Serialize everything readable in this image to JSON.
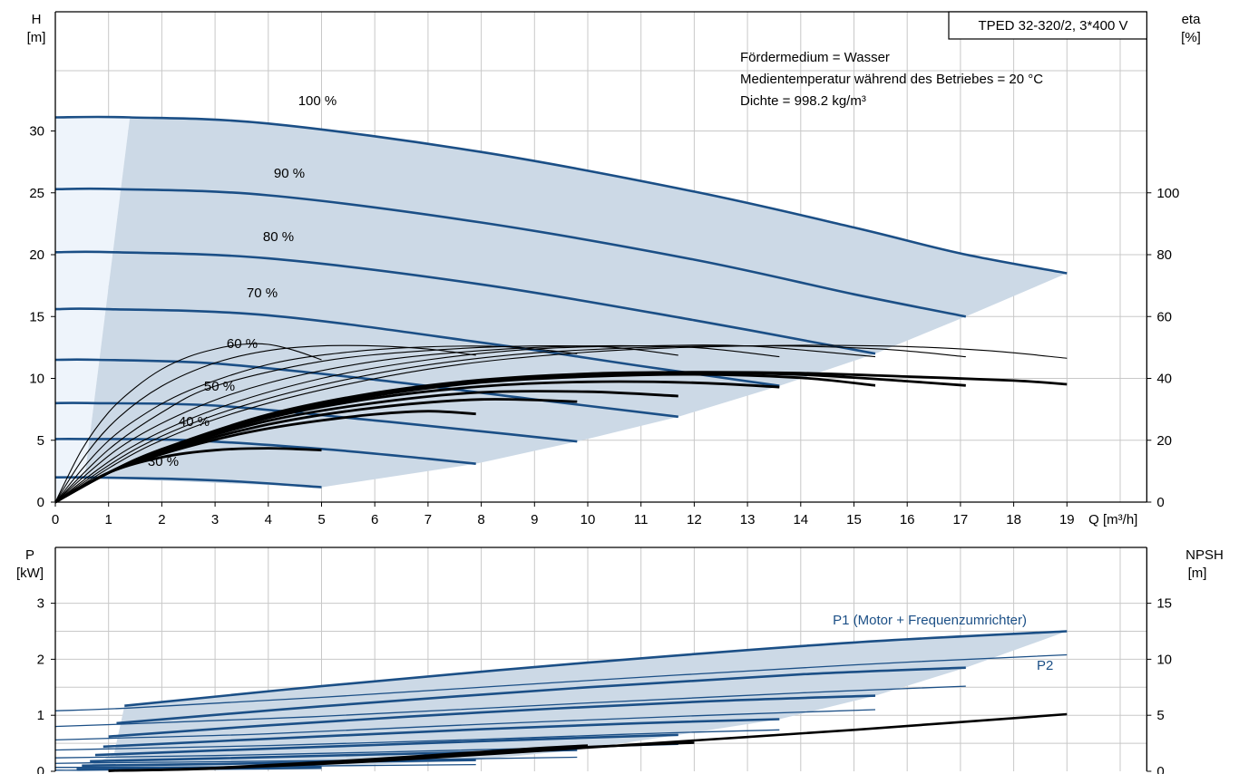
{
  "colors": {
    "pump_curve": "#1b4f86",
    "efficiency_curve": "#000000",
    "operating_area_fill": "#ccd9e6",
    "low_flow_fill": "#eef4fb",
    "grid": "#c8c8c8"
  },
  "chart_data": [
    {
      "type": "line",
      "title": "TPED 32-320/2, 3*400 V",
      "xlabel": "Q [m³/h]",
      "ylabel_left": "H\n[m]",
      "ylabel_right": "eta\n[%]",
      "xlim": [
        0,
        20.5
      ],
      "ylim_left": [
        0,
        35
      ],
      "ylim_right": [
        0,
        140
      ],
      "x_ticks": [
        0,
        1,
        2,
        3,
        4,
        5,
        6,
        7,
        8,
        9,
        10,
        11,
        12,
        13,
        14,
        15,
        16,
        17,
        18,
        19
      ],
      "y_ticks_left": [
        0,
        5,
        10,
        15,
        20,
        25,
        30
      ],
      "y_ticks_right": [
        0,
        20,
        40,
        60,
        80,
        100
      ],
      "grid": true,
      "info_lines": [
        "Fördermedium = Wasser",
        "Medientemperatur während des Betriebes = 20 °C",
        "Dichte = 998.2 kg/m³"
      ],
      "head_curves": [
        {
          "label": "100 %",
          "x": [
            0,
            1.4,
            4,
            8,
            12,
            15,
            17,
            19
          ],
          "y": [
            31.1,
            31.1,
            30.6,
            28.3,
            25.1,
            22.2,
            20.1,
            18.5
          ]
        },
        {
          "label": "90 %",
          "x": [
            0,
            1.2,
            4,
            8,
            12,
            15,
            17.1
          ],
          "y": [
            25.3,
            25.3,
            24.8,
            22.6,
            19.6,
            16.8,
            15.0
          ]
        },
        {
          "label": "80 %",
          "x": [
            0,
            1.1,
            4,
            8,
            12,
            15.4
          ],
          "y": [
            20.2,
            20.2,
            19.7,
            17.6,
            14.7,
            12.0
          ]
        },
        {
          "label": "70 %",
          "x": [
            0,
            0.95,
            4,
            8,
            11,
            13.6
          ],
          "y": [
            15.6,
            15.6,
            15.1,
            12.9,
            11.0,
            9.4
          ]
        },
        {
          "label": "60 %",
          "x": [
            0,
            0.8,
            3,
            6,
            9,
            11.7
          ],
          "y": [
            11.5,
            11.5,
            11.2,
            9.9,
            8.3,
            6.9
          ]
        },
        {
          "label": "50 %",
          "x": [
            0,
            0.7,
            3,
            6,
            8.5,
            9.8
          ],
          "y": [
            8.0,
            8.0,
            7.8,
            6.6,
            5.5,
            4.9
          ]
        },
        {
          "label": "40 %",
          "x": [
            0,
            0.55,
            2.5,
            5,
            7,
            7.9
          ],
          "y": [
            5.1,
            5.1,
            5.0,
            4.3,
            3.5,
            3.1
          ]
        },
        {
          "label": "30 %",
          "x": [
            0,
            0.45,
            2,
            3.5,
            5
          ],
          "y": [
            2.0,
            2.0,
            1.9,
            1.65,
            1.2
          ]
        }
      ],
      "efficiency_curves": [
        {
          "x": [
            0,
            1,
            2,
            3,
            4,
            5
          ],
          "y": [
            0,
            9.5,
            14.5,
            16.8,
            17.4,
            16.8
          ]
        },
        {
          "x": [
            0,
            1,
            2,
            3,
            4,
            5,
            6,
            7,
            7.9
          ],
          "y": [
            0,
            9.5,
            15.5,
            20.2,
            23.8,
            26.4,
            28.4,
            29.4,
            28.5
          ]
        },
        {
          "x": [
            0,
            1,
            2,
            4,
            6,
            8,
            9.8
          ],
          "y": [
            0,
            9.5,
            16.2,
            25.1,
            30.5,
            33.2,
            32.5
          ]
        },
        {
          "x": [
            0,
            1,
            2,
            4,
            6,
            8,
            10,
            11.7
          ],
          "y": [
            0,
            9.5,
            16.5,
            26.3,
            32.1,
            35.5,
            35.7,
            34.3
          ]
        },
        {
          "x": [
            0,
            1,
            2,
            4,
            6,
            8,
            10,
            12,
            13.6
          ],
          "y": [
            0,
            9.5,
            16.7,
            27.2,
            33.6,
            37.4,
            38.9,
            38.6,
            37.2
          ]
        },
        {
          "x": [
            0,
            1,
            2,
            4,
            6,
            8,
            10,
            12,
            14,
            15.4
          ],
          "y": [
            0,
            9.5,
            16.9,
            27.7,
            34.4,
            38.7,
            40.6,
            41.3,
            40.2,
            37.7
          ]
        },
        {
          "x": [
            0,
            1,
            2,
            4,
            6,
            8,
            10,
            12,
            14,
            16,
            17.1
          ],
          "y": [
            0,
            9.5,
            17.0,
            28.0,
            34.9,
            39.2,
            41.3,
            41.8,
            41.2,
            39.1,
            37.7
          ]
        },
        {
          "x": [
            0,
            1,
            2,
            4,
            6,
            8,
            10,
            12,
            14,
            16,
            18,
            19
          ],
          "y": [
            0,
            9.5,
            17.1,
            28.3,
            35.3,
            39.5,
            41.5,
            42.0,
            41.7,
            40.6,
            39.3,
            38.1
          ]
        },
        {
          "x": [
            0,
            0.5,
            1,
            1.5,
            2,
            2.5,
            3,
            3.5,
            4,
            4.5,
            5
          ],
          "y": [
            0,
            17,
            29,
            37,
            43,
            47,
            49.5,
            51,
            51,
            49,
            46
          ]
        },
        {
          "x": [
            0,
            0.6,
            1.2,
            2,
            3,
            4,
            5,
            6,
            7,
            7.9
          ],
          "y": [
            0,
            16,
            27.5,
            37.5,
            45,
            49,
            50.5,
            50.5,
            49.5,
            47.5
          ]
        },
        {
          "x": [
            0,
            0.8,
            1.5,
            2.5,
            4,
            5.5,
            7,
            8.5,
            9.8
          ],
          "y": [
            0,
            16.5,
            26.5,
            36,
            44.5,
            48.5,
            50.2,
            50.2,
            48
          ]
        },
        {
          "x": [
            0,
            1,
            2,
            3,
            5,
            7,
            9,
            10.5,
            11.7
          ],
          "y": [
            0,
            17,
            29,
            37.5,
            45.5,
            49,
            50.5,
            50,
            47.5
          ]
        },
        {
          "x": [
            0,
            1.2,
            2.5,
            4,
            6,
            8,
            10,
            12,
            13.6
          ],
          "y": [
            0,
            17.5,
            29.5,
            38.5,
            45.5,
            49,
            50.5,
            50,
            47
          ]
        },
        {
          "x": [
            0,
            1.4,
            3,
            5,
            7,
            9,
            11,
            13,
            15.4
          ],
          "y": [
            0,
            17.5,
            30,
            40,
            46,
            49.5,
            50.5,
            50.5,
            47
          ]
        },
        {
          "x": [
            0,
            1.6,
            3.5,
            6,
            8.5,
            11,
            13.5,
            15.5,
            17.1
          ],
          "y": [
            0,
            18,
            31,
            41.5,
            47.5,
            50,
            50.5,
            49.5,
            47
          ]
        },
        {
          "x": [
            0,
            1.8,
            4,
            7,
            10,
            13,
            15.5,
            17.5,
            19
          ],
          "y": [
            0,
            18.5,
            32,
            43,
            48.5,
            50.5,
            50.5,
            49,
            46.5
          ]
        }
      ]
    },
    {
      "type": "line",
      "xlabel": "",
      "ylabel_left": "P\n[kW]",
      "ylabel_right": "NPSH\n[m]",
      "xlim": [
        0,
        20.5
      ],
      "ylim_left": [
        0,
        3.5
      ],
      "ylim_right": [
        0,
        17.5
      ],
      "y_ticks_left": [
        0,
        1,
        2,
        3
      ],
      "y_ticks_right": [
        0,
        5,
        10,
        15
      ],
      "grid": true,
      "legend_labels": [
        "P1 (Motor + Frequenzumrichter)",
        "P2"
      ],
      "p1_curves": [
        {
          "x": [
            1.3,
            5,
            10,
            15,
            19
          ],
          "y": [
            1.17,
            1.52,
            1.94,
            2.3,
            2.5
          ]
        },
        {
          "x": [
            1.15,
            5,
            10,
            14,
            17.1
          ],
          "y": [
            0.86,
            1.16,
            1.5,
            1.73,
            1.85
          ]
        },
        {
          "x": [
            1.0,
            4,
            8,
            12,
            15.4
          ],
          "y": [
            0.62,
            0.82,
            1.05,
            1.24,
            1.35
          ]
        },
        {
          "x": [
            0.9,
            4,
            8,
            11,
            13.6
          ],
          "y": [
            0.44,
            0.58,
            0.75,
            0.86,
            0.93
          ]
        },
        {
          "x": [
            0.75,
            3,
            6,
            9,
            11.7
          ],
          "y": [
            0.29,
            0.37,
            0.47,
            0.57,
            0.65
          ]
        },
        {
          "x": [
            0.65,
            3,
            6,
            9.8
          ],
          "y": [
            0.18,
            0.23,
            0.3,
            0.38
          ]
        },
        {
          "x": [
            0.5,
            3,
            5.5,
            7.9
          ],
          "y": [
            0.1,
            0.13,
            0.17,
            0.2
          ]
        },
        {
          "x": [
            0.4,
            2,
            4,
            5
          ],
          "y": [
            0.04,
            0.05,
            0.07,
            0.08
          ]
        }
      ],
      "p2_curves": [
        {
          "x": [
            0,
            1.4,
            5,
            10,
            15,
            19
          ],
          "y": [
            1.08,
            1.13,
            1.32,
            1.62,
            1.9,
            2.08
          ]
        },
        {
          "x": [
            0,
            1.2,
            5,
            10,
            14,
            17.1
          ],
          "y": [
            0.8,
            0.84,
            0.98,
            1.22,
            1.4,
            1.52
          ]
        },
        {
          "x": [
            0,
            1.1,
            4,
            8,
            12,
            15.4
          ],
          "y": [
            0.56,
            0.59,
            0.67,
            0.84,
            0.99,
            1.1
          ]
        },
        {
          "x": [
            0,
            0.95,
            4,
            8,
            11,
            13.6
          ],
          "y": [
            0.38,
            0.4,
            0.46,
            0.57,
            0.67,
            0.74
          ]
        },
        {
          "x": [
            0,
            0.8,
            3,
            6,
            9,
            11.7
          ],
          "y": [
            0.24,
            0.25,
            0.28,
            0.34,
            0.41,
            0.48
          ]
        },
        {
          "x": [
            0,
            0.7,
            3,
            6,
            9.8
          ],
          "y": [
            0.14,
            0.15,
            0.17,
            0.2,
            0.25
          ]
        },
        {
          "x": [
            0,
            0.55,
            3,
            5.5,
            7.9
          ],
          "y": [
            0.07,
            0.07,
            0.08,
            0.1,
            0.12
          ]
        },
        {
          "x": [
            0,
            0.45,
            2,
            4,
            5
          ],
          "y": [
            0.02,
            0.02,
            0.03,
            0.04,
            0.05
          ]
        }
      ],
      "npsh_curves": [
        {
          "x": [
            1,
            3,
            6,
            9,
            12,
            15,
            19
          ],
          "npsh": [
            0.05,
            0.25,
            0.9,
            1.8,
            2.75,
            3.7,
            5.1
          ]
        },
        {
          "x": [
            1,
            3,
            6,
            9,
            12
          ],
          "npsh": [
            0.05,
            0.28,
            1.0,
            1.95,
            2.55
          ]
        },
        {
          "x": [
            1,
            3,
            6,
            9,
            10
          ],
          "npsh": [
            0.05,
            0.3,
            1.1,
            2.05,
            2.3
          ]
        }
      ]
    }
  ]
}
